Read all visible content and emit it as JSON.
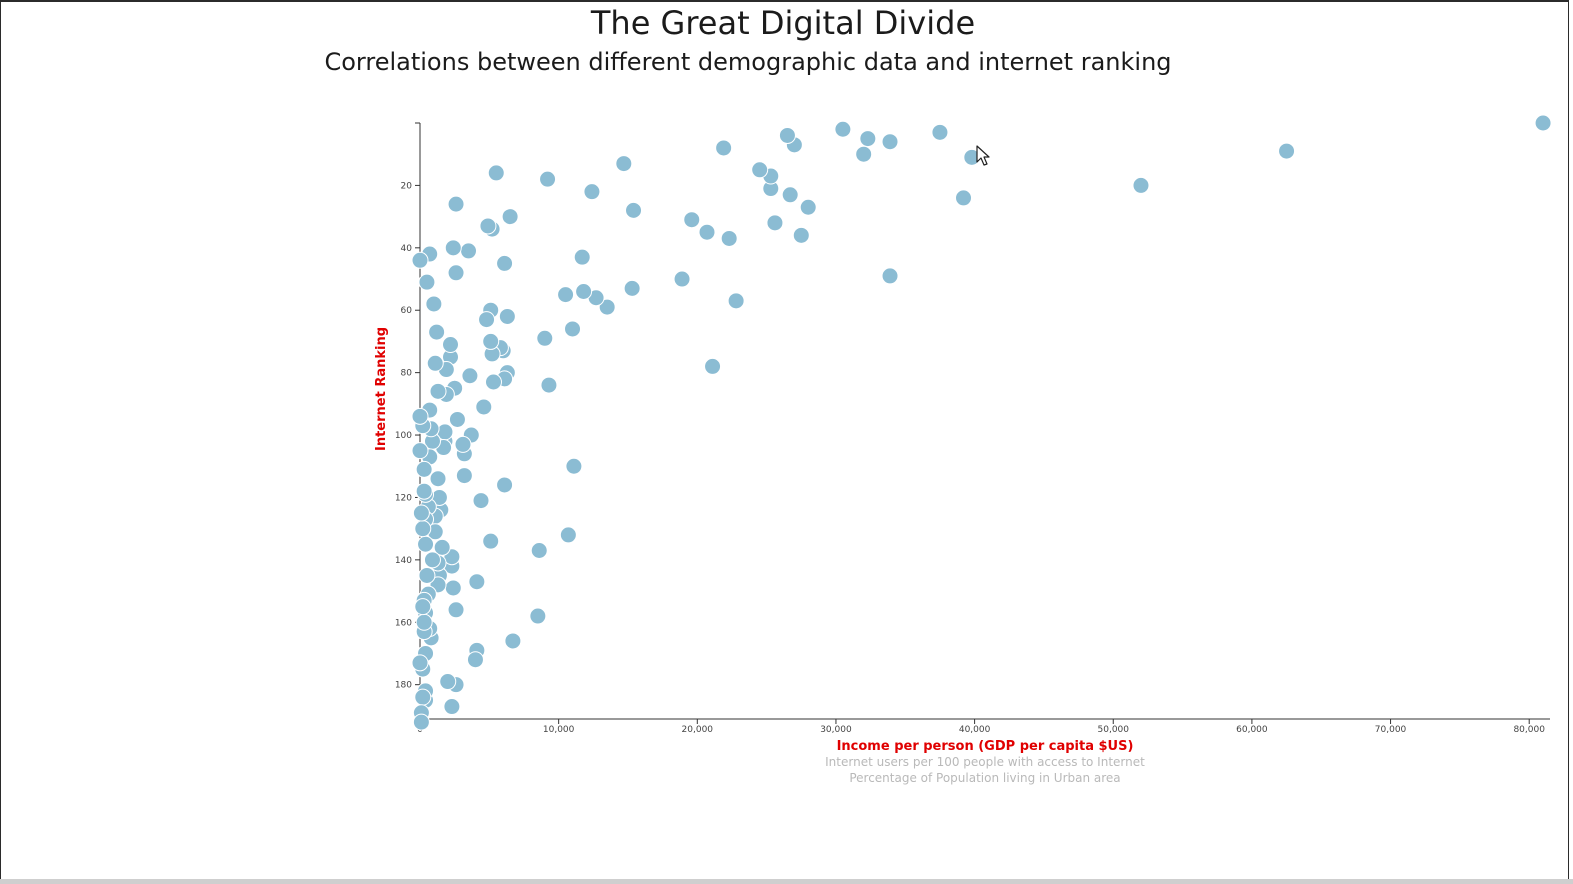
{
  "page": {
    "title": "The Great Digital Divide",
    "subtitle": "Correlations between different demographic data and internet ranking"
  },
  "chart_data": {
    "type": "scatter",
    "title": "The Great Digital Divide",
    "subtitle": "Correlations between different demographic data and internet ranking",
    "xlabel": "Income per person (GDP per capita $US)",
    "ylabel": "Internet Ranking",
    "alternate_x_options": [
      "Internet users per 100 people with access to Internet",
      "Percentage of Population living in Urban area"
    ],
    "xlim": [
      0,
      81500
    ],
    "ylim": [
      191,
      0
    ],
    "x_ticks": [
      0,
      10000,
      20000,
      30000,
      40000,
      50000,
      60000,
      70000,
      80000
    ],
    "x_tick_labels": [
      "0",
      "10,000",
      "20,000",
      "30,000",
      "40,000",
      "50,000",
      "60,000",
      "70,000",
      "80,000"
    ],
    "y_ticks": [
      20,
      40,
      60,
      80,
      100,
      120,
      140,
      160,
      180
    ],
    "y_tick_labels": [
      "20",
      "40",
      "60",
      "80",
      "100",
      "120",
      "140",
      "160",
      "180"
    ],
    "grid": false,
    "color": "#8bbcd3",
    "points": [
      {
        "x": 81000,
        "y": 0
      },
      {
        "x": 62500,
        "y": 9
      },
      {
        "x": 52000,
        "y": 20
      },
      {
        "x": 39800,
        "y": 11
      },
      {
        "x": 39200,
        "y": 24
      },
      {
        "x": 37500,
        "y": 3
      },
      {
        "x": 33900,
        "y": 6
      },
      {
        "x": 33900,
        "y": 49
      },
      {
        "x": 32300,
        "y": 5
      },
      {
        "x": 32000,
        "y": 10
      },
      {
        "x": 30500,
        "y": 2
      },
      {
        "x": 28000,
        "y": 27
      },
      {
        "x": 27500,
        "y": 36
      },
      {
        "x": 27000,
        "y": 7
      },
      {
        "x": 26500,
        "y": 4
      },
      {
        "x": 26700,
        "y": 23
      },
      {
        "x": 25600,
        "y": 32
      },
      {
        "x": 25300,
        "y": 21
      },
      {
        "x": 25300,
        "y": 17
      },
      {
        "x": 24500,
        "y": 15
      },
      {
        "x": 22800,
        "y": 57
      },
      {
        "x": 22300,
        "y": 37
      },
      {
        "x": 21900,
        "y": 8
      },
      {
        "x": 21100,
        "y": 78
      },
      {
        "x": 20700,
        "y": 35
      },
      {
        "x": 19600,
        "y": 31
      },
      {
        "x": 18900,
        "y": 50
      },
      {
        "x": 15400,
        "y": 28
      },
      {
        "x": 15300,
        "y": 53
      },
      {
        "x": 14700,
        "y": 13
      },
      {
        "x": 13500,
        "y": 59
      },
      {
        "x": 12700,
        "y": 56
      },
      {
        "x": 12400,
        "y": 22
      },
      {
        "x": 11800,
        "y": 54
      },
      {
        "x": 11700,
        "y": 43
      },
      {
        "x": 11100,
        "y": 110
      },
      {
        "x": 11000,
        "y": 66
      },
      {
        "x": 10700,
        "y": 132
      },
      {
        "x": 10500,
        "y": 55
      },
      {
        "x": 9300,
        "y": 84
      },
      {
        "x": 9200,
        "y": 18
      },
      {
        "x": 9000,
        "y": 69
      },
      {
        "x": 8600,
        "y": 137
      },
      {
        "x": 8500,
        "y": 158
      },
      {
        "x": 6700,
        "y": 166
      },
      {
        "x": 6500,
        "y": 30
      },
      {
        "x": 6300,
        "y": 62
      },
      {
        "x": 6300,
        "y": 80
      },
      {
        "x": 6100,
        "y": 45
      },
      {
        "x": 6100,
        "y": 82
      },
      {
        "x": 6100,
        "y": 116
      },
      {
        "x": 6000,
        "y": 73
      },
      {
        "x": 5800,
        "y": 72
      },
      {
        "x": 5500,
        "y": 16
      },
      {
        "x": 5300,
        "y": 83
      },
      {
        "x": 5200,
        "y": 74
      },
      {
        "x": 5200,
        "y": 34
      },
      {
        "x": 5100,
        "y": 60
      },
      {
        "x": 5100,
        "y": 70
      },
      {
        "x": 5100,
        "y": 134
      },
      {
        "x": 4900,
        "y": 33
      },
      {
        "x": 4800,
        "y": 63
      },
      {
        "x": 4600,
        "y": 91
      },
      {
        "x": 4400,
        "y": 121
      },
      {
        "x": 4100,
        "y": 147
      },
      {
        "x": 4100,
        "y": 169
      },
      {
        "x": 4000,
        "y": 172
      },
      {
        "x": 3700,
        "y": 100
      },
      {
        "x": 3600,
        "y": 81
      },
      {
        "x": 3500,
        "y": 41
      },
      {
        "x": 3200,
        "y": 113
      },
      {
        "x": 3200,
        "y": 106
      },
      {
        "x": 3100,
        "y": 103
      },
      {
        "x": 2700,
        "y": 95
      },
      {
        "x": 2600,
        "y": 26
      },
      {
        "x": 2600,
        "y": 48
      },
      {
        "x": 2600,
        "y": 156
      },
      {
        "x": 2600,
        "y": 180
      },
      {
        "x": 2500,
        "y": 85
      },
      {
        "x": 2400,
        "y": 40
      },
      {
        "x": 2400,
        "y": 149
      },
      {
        "x": 2300,
        "y": 187
      },
      {
        "x": 2300,
        "y": 142
      },
      {
        "x": 2300,
        "y": 139
      },
      {
        "x": 2200,
        "y": 75
      },
      {
        "x": 2200,
        "y": 71
      },
      {
        "x": 2000,
        "y": 179
      },
      {
        "x": 1900,
        "y": 79
      },
      {
        "x": 1900,
        "y": 87
      },
      {
        "x": 1800,
        "y": 102
      },
      {
        "x": 1800,
        "y": 99
      },
      {
        "x": 1700,
        "y": 104
      },
      {
        "x": 1600,
        "y": 136
      },
      {
        "x": 1500,
        "y": 124
      },
      {
        "x": 1400,
        "y": 145
      },
      {
        "x": 1400,
        "y": 120
      },
      {
        "x": 1300,
        "y": 148
      },
      {
        "x": 1300,
        "y": 114
      },
      {
        "x": 1300,
        "y": 141
      },
      {
        "x": 1300,
        "y": 86
      },
      {
        "x": 1200,
        "y": 67
      },
      {
        "x": 1100,
        "y": 126
      },
      {
        "x": 1100,
        "y": 131
      },
      {
        "x": 1100,
        "y": 77
      },
      {
        "x": 1000,
        "y": 58
      },
      {
        "x": 900,
        "y": 140
      },
      {
        "x": 900,
        "y": 102
      },
      {
        "x": 800,
        "y": 98
      },
      {
        "x": 800,
        "y": 165
      },
      {
        "x": 700,
        "y": 162
      },
      {
        "x": 700,
        "y": 107
      },
      {
        "x": 700,
        "y": 42
      },
      {
        "x": 700,
        "y": 92
      },
      {
        "x": 600,
        "y": 123
      },
      {
        "x": 600,
        "y": 151
      },
      {
        "x": 500,
        "y": 145
      },
      {
        "x": 500,
        "y": 51
      },
      {
        "x": 400,
        "y": 135
      },
      {
        "x": 400,
        "y": 157
      },
      {
        "x": 400,
        "y": 127
      },
      {
        "x": 400,
        "y": 119
      },
      {
        "x": 400,
        "y": 185
      },
      {
        "x": 400,
        "y": 182
      },
      {
        "x": 400,
        "y": 170
      },
      {
        "x": 300,
        "y": 163
      },
      {
        "x": 300,
        "y": 160
      },
      {
        "x": 300,
        "y": 153
      },
      {
        "x": 300,
        "y": 118
      },
      {
        "x": 300,
        "y": 111
      },
      {
        "x": 200,
        "y": 97
      },
      {
        "x": 200,
        "y": 130
      },
      {
        "x": 200,
        "y": 155
      },
      {
        "x": 200,
        "y": 175
      },
      {
        "x": 200,
        "y": 184
      },
      {
        "x": 100,
        "y": 189
      },
      {
        "x": 100,
        "y": 192
      },
      {
        "x": 100,
        "y": 125
      },
      {
        "x": 0,
        "y": 173
      },
      {
        "x": 0,
        "y": 105
      },
      {
        "x": 0,
        "y": 94
      },
      {
        "x": 0,
        "y": 44
      }
    ]
  }
}
